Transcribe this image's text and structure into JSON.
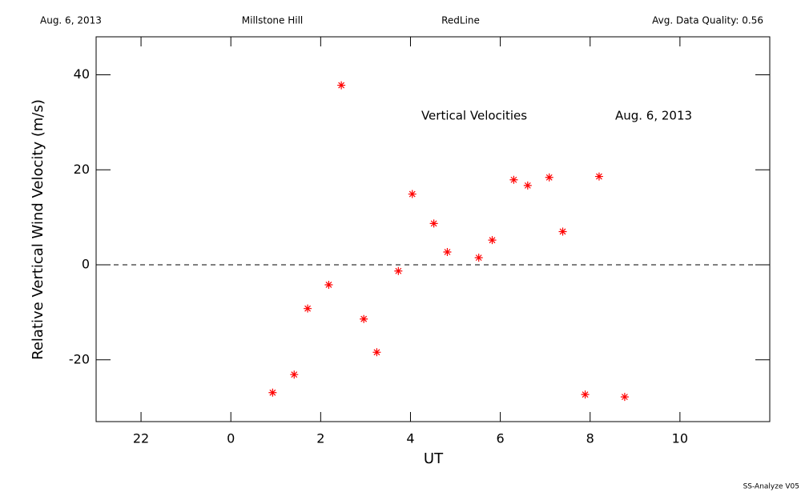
{
  "chart_data": {
    "type": "scatter",
    "header": {
      "date": "Aug. 6, 2013",
      "site": "Millstone Hill",
      "line": "RedLine",
      "quality": "Avg. Data Quality: 0.56"
    },
    "title": "Vertical Velocities",
    "subtitle": "Aug. 6, 2013",
    "xlabel": "UT",
    "ylabel": "Relative Vertical Wind Velocity (m/s)",
    "footer": "SS-Analyze V05",
    "x": [
      0.93,
      1.41,
      1.71,
      2.18,
      2.46,
      2.96,
      3.25,
      3.73,
      4.04,
      4.52,
      4.82,
      5.52,
      5.82,
      6.3,
      6.61,
      7.09,
      7.39,
      7.89,
      8.2,
      8.77
    ],
    "values": [
      -26.9,
      -23.1,
      -9.2,
      -4.2,
      37.8,
      -11.4,
      -18.4,
      -1.3,
      14.9,
      8.7,
      2.7,
      1.5,
      5.2,
      17.9,
      16.7,
      18.4,
      7.0,
      -27.3,
      18.6,
      -27.8
    ],
    "color": "#ff0000",
    "xlim": [
      -3,
      12
    ],
    "xticks": [
      {
        "value": -2,
        "label": "22"
      },
      0,
      2,
      4,
      6,
      8,
      10
    ],
    "ylim": [
      -33,
      48
    ],
    "yticks": [
      -20,
      0,
      20,
      40
    ],
    "zero_line": true
  }
}
